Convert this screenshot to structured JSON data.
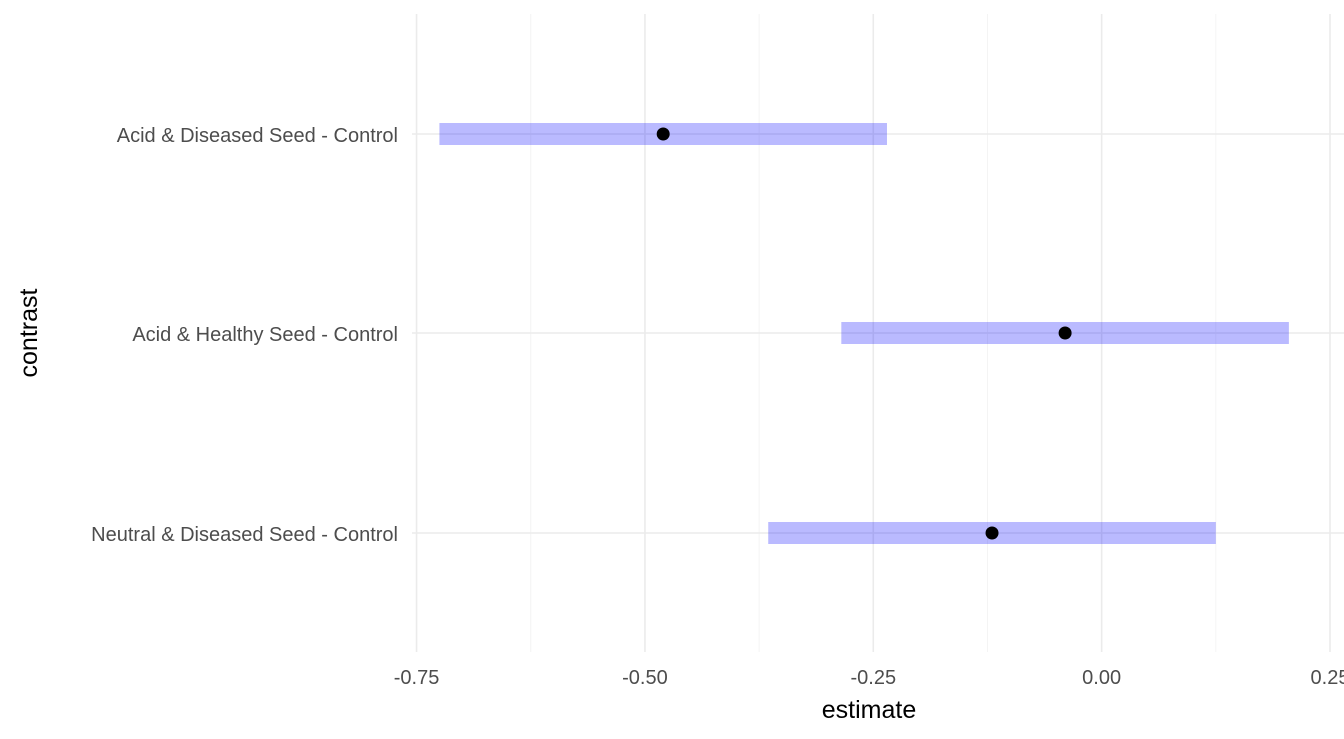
{
  "chart_data": {
    "type": "pointrange",
    "title": "",
    "xlabel": "estimate",
    "ylabel": "contrast",
    "xlim": [
      -0.755,
      0.25
    ],
    "xticks": [
      -0.75,
      -0.5,
      -0.25,
      0.0,
      0.25
    ],
    "xtick_labels": [
      "-0.75",
      "-0.50",
      "-0.25",
      "0.00",
      "0.25"
    ],
    "grid": true,
    "categories": [
      "Acid & Diseased Seed - Control",
      "Acid & Healthy Seed - Control",
      "Neutral & Diseased Seed - Control"
    ],
    "estimates": [
      -0.48,
      -0.04,
      -0.12
    ],
    "lower": [
      -0.725,
      -0.285,
      -0.365
    ],
    "upper": [
      -0.235,
      0.205,
      0.125
    ],
    "colors": {
      "interval": "#0000ff",
      "interval_opacity": 0.27,
      "point": "#000000"
    }
  }
}
